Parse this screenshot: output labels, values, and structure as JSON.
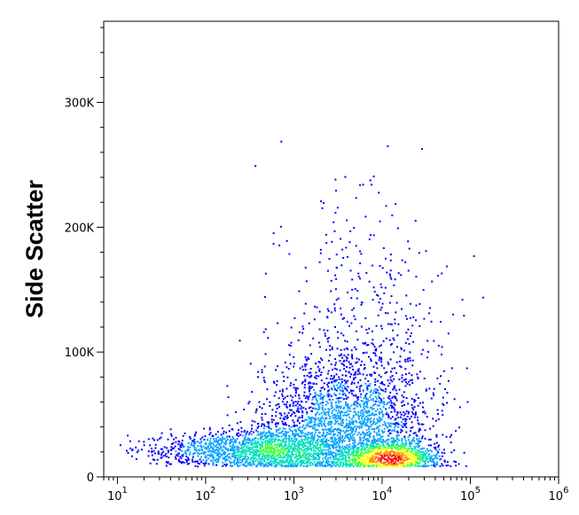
{
  "chart_data": {
    "type": "scatter",
    "title": "",
    "xlabel": "",
    "ylabel": "Side Scatter",
    "x_scale": "log",
    "xlim": [
      7,
      1000000
    ],
    "ylim": [
      0,
      365000
    ],
    "grid": false,
    "x_ticks": [
      {
        "base": "10",
        "exp": "1",
        "value": 10
      },
      {
        "base": "10",
        "exp": "2",
        "value": 100
      },
      {
        "base": "10",
        "exp": "3",
        "value": 1000
      },
      {
        "base": "10",
        "exp": "4",
        "value": 10000
      },
      {
        "base": "10",
        "exp": "5",
        "value": 100000
      },
      {
        "base": "10",
        "exp": "6",
        "value": 1000000
      }
    ],
    "y_ticks": [
      {
        "label": "0",
        "value": 0
      },
      {
        "label": "100K",
        "value": 100000
      },
      {
        "label": "200K",
        "value": 200000
      },
      {
        "label": "300K",
        "value": 300000
      }
    ],
    "density_colors": [
      "#0000ff",
      "#00a0ff",
      "#00e0c0",
      "#40ff40",
      "#ffff00",
      "#ff8000",
      "#ff0000"
    ],
    "populations": [
      {
        "name": "",
        "x_center": 600,
        "x_log_spread": 0.35,
        "y_center": 22000,
        "y_spread": 8000,
        "count": 2200
      },
      {
        "name": "",
        "x_center": 12000,
        "x_log_spread": 0.22,
        "y_center": 16000,
        "y_spread": 5000,
        "count": 3200
      },
      {
        "name": "",
        "x_center": 4000,
        "x_log_spread": 0.45,
        "y_center": 40000,
        "y_spread": 28000,
        "count": 2600
      },
      {
        "name": "",
        "x_center": 6000,
        "x_log_spread": 0.45,
        "y_center": 100000,
        "y_spread": 60000,
        "count": 500
      },
      {
        "name": "",
        "x_center": 80,
        "x_log_spread": 0.35,
        "y_center": 22000,
        "y_spread": 6000,
        "count": 350
      }
    ]
  }
}
